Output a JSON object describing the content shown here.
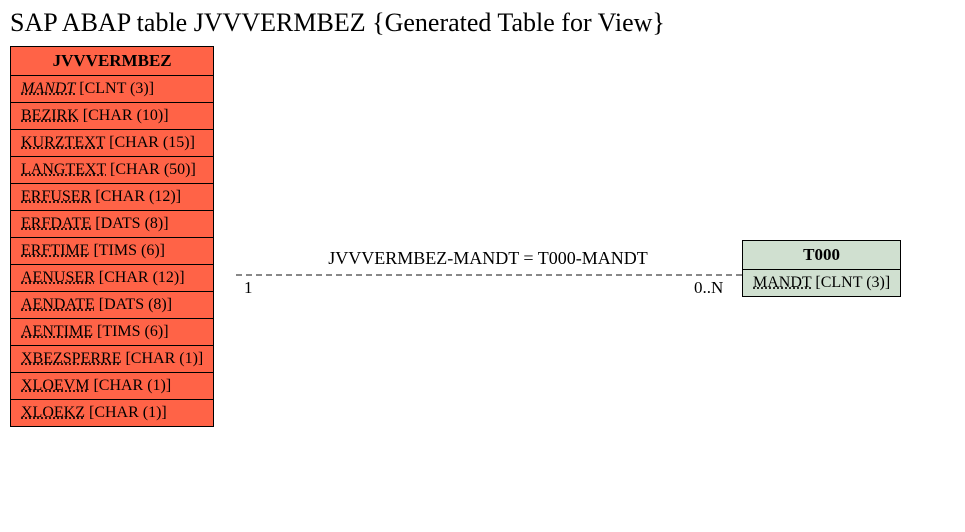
{
  "title": "SAP ABAP table JVVVERMBEZ {Generated Table for View}",
  "leftEntity": {
    "name": "JVVVERMBEZ",
    "bg": "#ff6347",
    "fields": [
      {
        "name": "MANDT",
        "type": "[CLNT (3)]",
        "key": true
      },
      {
        "name": "BEZIRK",
        "type": "[CHAR (10)]",
        "key": false
      },
      {
        "name": "KURZTEXT",
        "type": "[CHAR (15)]",
        "key": false
      },
      {
        "name": "LANGTEXT",
        "type": "[CHAR (50)]",
        "key": false
      },
      {
        "name": "ERFUSER",
        "type": "[CHAR (12)]",
        "key": false
      },
      {
        "name": "ERFDATE",
        "type": "[DATS (8)]",
        "key": false
      },
      {
        "name": "ERFTIME",
        "type": "[TIMS (6)]",
        "key": false
      },
      {
        "name": "AENUSER",
        "type": "[CHAR (12)]",
        "key": false
      },
      {
        "name": "AENDATE",
        "type": "[DATS (8)]",
        "key": false
      },
      {
        "name": "AENTIME",
        "type": "[TIMS (6)]",
        "key": false
      },
      {
        "name": "XBEZSPERRE",
        "type": "[CHAR (1)]",
        "key": false
      },
      {
        "name": "XLOEVM",
        "type": "[CHAR (1)]",
        "key": false
      },
      {
        "name": "XLOEKZ",
        "type": "[CHAR (1)]",
        "key": false
      }
    ]
  },
  "rightEntity": {
    "name": "T000",
    "bg": "#d0e0d0",
    "fields": [
      {
        "name": "MANDT",
        "type": "[CLNT (3)]",
        "key": false
      }
    ]
  },
  "relation": {
    "label": "JVVVERMBEZ-MANDT = T000-MANDT",
    "leftMult": "1",
    "rightMult": "0..N",
    "lineColor": "#888888"
  }
}
